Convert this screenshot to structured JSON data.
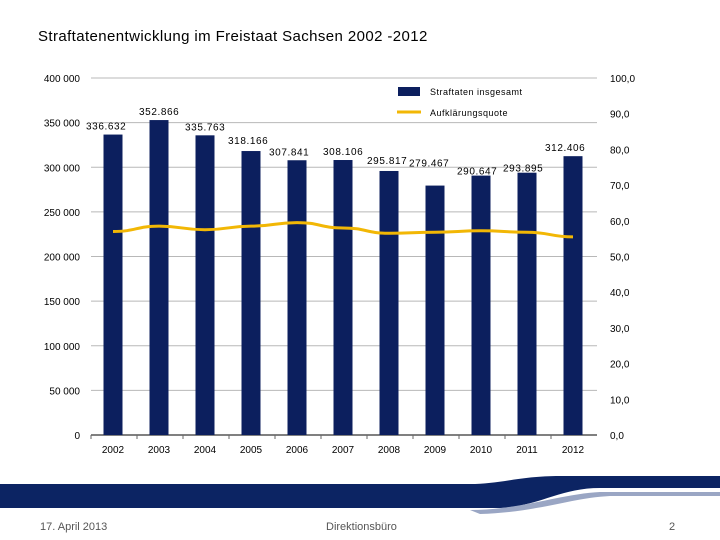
{
  "slide": {
    "title": "Straftatenentwicklung im Freistaat Sachsen 2002 -2012",
    "footer_date": "17. April 2013",
    "footer_center": "Direktionsbüro",
    "page_number": "2"
  },
  "colors": {
    "bar": "#0c1f5e",
    "line": "#f2b705",
    "axis": "#000000",
    "footer_band": "#0c2463"
  },
  "chart_data": {
    "type": "bar",
    "title": "Straftatenentwicklung im Freistaat Sachsen 2002 -2012",
    "categories": [
      "2002",
      "2003",
      "2004",
      "2005",
      "2006",
      "2007",
      "2008",
      "2009",
      "2010",
      "2011",
      "2012"
    ],
    "series": [
      {
        "name": "Straftaten insgesamt",
        "axis": "left",
        "values": [
          336632,
          352866,
          335763,
          318166,
          307841,
          308106,
          295817,
          279467,
          290647,
          293895,
          312406
        ],
        "labels": [
          "336.632",
          "352.866",
          "335.763",
          "318.166",
          "307.841",
          "308.106",
          "295.817",
          "279.467",
          "290.647",
          "293.895",
          "312.406"
        ]
      },
      {
        "name": "Aufklärungsquote",
        "axis": "right",
        "type": "line",
        "values": [
          57.0,
          58.5,
          57.5,
          58.5,
          59.5,
          58.0,
          56.5,
          56.8,
          57.2,
          56.8,
          55.5
        ]
      }
    ],
    "left_axis": {
      "min": 0,
      "max": 400000,
      "ticks": [
        0,
        50000,
        100000,
        150000,
        200000,
        250000,
        300000,
        350000,
        400000
      ],
      "tick_labels": [
        "0",
        "50 000",
        "100 000",
        "150 000",
        "200 000",
        "250 000",
        "300 000",
        "350 000",
        "400 000"
      ]
    },
    "right_axis": {
      "min": 0,
      "max": 100,
      "ticks": [
        0,
        10,
        20,
        30,
        40,
        50,
        60,
        70,
        80,
        90,
        100
      ],
      "tick_labels": [
        "0,0",
        "10,0",
        "20,0",
        "30,0",
        "40,0",
        "50,0",
        "60,0",
        "70,0",
        "80,0",
        "90,0",
        "100,0"
      ]
    },
    "legend": {
      "position": "top-right",
      "entries": [
        "Straftaten insgesamt",
        "Aufklärungsquote"
      ]
    },
    "gridlines": true
  }
}
